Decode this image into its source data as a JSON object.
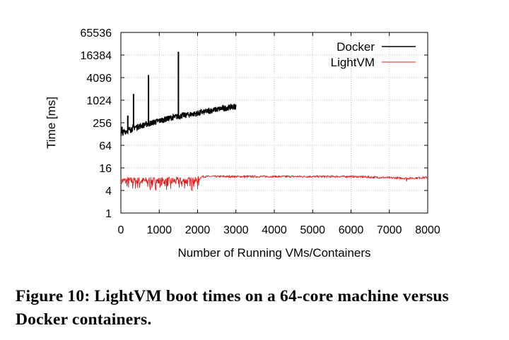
{
  "chart_data": {
    "type": "line",
    "xlabel": "Number of Running VMs/Containers",
    "ylabel": "Time [ms]",
    "xlim": [
      0,
      8000
    ],
    "ylim": [
      1,
      65536
    ],
    "yscale": "log2",
    "x_ticks": [
      "0",
      "1000",
      "2000",
      "3000",
      "4000",
      "5000",
      "6000",
      "7000",
      "8000"
    ],
    "y_ticks": [
      "1",
      "4",
      "16",
      "64",
      "256",
      "1024",
      "4096",
      "16384",
      "65536"
    ],
    "grid": true,
    "legend_position": "top-right",
    "series": [
      {
        "name": "Docker",
        "color": "#000000",
        "x": [
          0,
          100,
          200,
          300,
          500,
          700,
          1000,
          1300,
          1600,
          2000,
          2400,
          2800,
          3000
        ],
        "y": [
          130,
          150,
          165,
          185,
          210,
          240,
          290,
          350,
          400,
          460,
          560,
          660,
          700
        ],
        "spikes": [
          {
            "x": 30,
            "y": 200
          },
          {
            "x": 180,
            "y": 400
          },
          {
            "x": 330,
            "y": 1500
          },
          {
            "x": 720,
            "y": 4800
          },
          {
            "x": 1500,
            "y": 20000
          }
        ]
      },
      {
        "name": "LightVM",
        "color": "#e41a1c",
        "x": [
          0,
          2000,
          2100,
          4000,
          6000,
          7500,
          8000
        ],
        "y": [
          7,
          7,
          9.5,
          9.5,
          9.5,
          8.5,
          9
        ],
        "band_min_before_x2000": 4,
        "dips": [
          {
            "x": 700,
            "y": 5
          },
          {
            "x": 1300,
            "y": 4.5
          },
          {
            "x": 1900,
            "y": 5
          },
          {
            "x": 7450,
            "y": 7
          }
        ]
      }
    ]
  },
  "caption": "Figure 10: LightVM boot times on a 64-core machine versus Docker containers."
}
